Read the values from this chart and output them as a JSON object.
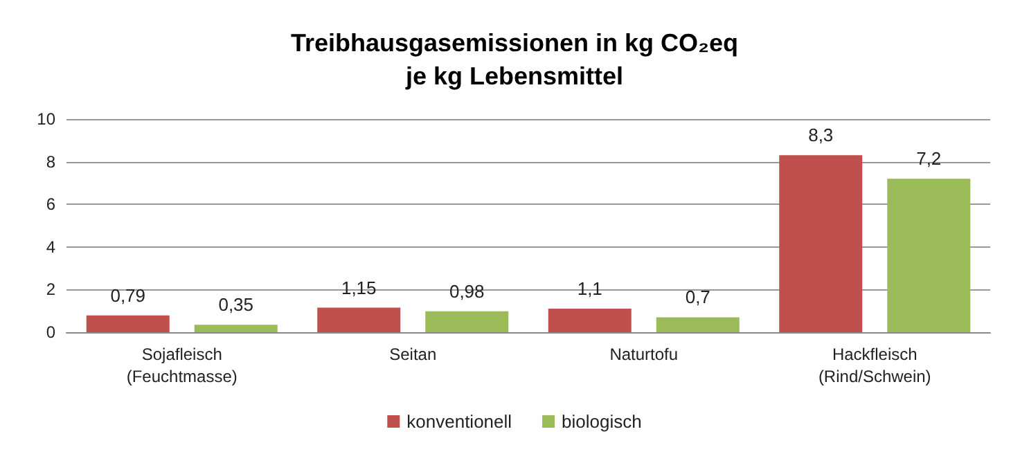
{
  "chart_data": {
    "type": "bar",
    "title": "Treibhausgasemissionen in kg CO₂eq\nje kg Lebensmittel",
    "categories": [
      "Sojafleisch\n(Feuchtmasse)",
      "Seitan",
      "Naturtofu",
      "Hackfleisch\n(Rind/Schwein)"
    ],
    "series": [
      {
        "name": "konventionell",
        "color": "#c0504d",
        "values": [
          0.79,
          1.15,
          1.1,
          8.3
        ],
        "value_labels": [
          "0,79",
          "1,15",
          "1,1",
          "8,3"
        ]
      },
      {
        "name": "biologisch",
        "color": "#9bbb59",
        "values": [
          0.35,
          0.98,
          0.7,
          7.2
        ],
        "value_labels": [
          "0,35",
          "0,98",
          "0,7",
          "7,2"
        ]
      }
    ],
    "ylim": [
      0,
      10
    ],
    "yticks": [
      0,
      2,
      4,
      6,
      8,
      10
    ],
    "grid": "y",
    "legend": "bottom"
  }
}
